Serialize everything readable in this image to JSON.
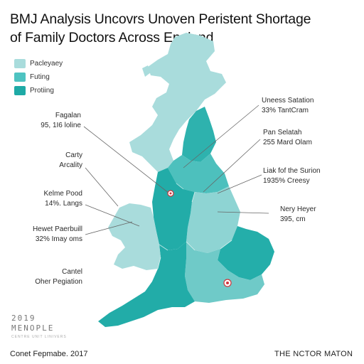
{
  "title": {
    "line1": "BMJ Analysis Uncovrs Unoven Peristent Shortage",
    "line2": "of Family Doctors Across England"
  },
  "legend": [
    {
      "label": "Pacleyaey",
      "color": "#a9dcdc"
    },
    {
      "label": "Futing",
      "color": "#4ec3c1"
    },
    {
      "label": "Protiing",
      "color": "#1eaaa6"
    }
  ],
  "colors": {
    "light": "#a9dcdc",
    "mid": "#57c4c1",
    "dark": "#22aca8",
    "leader": "#555555",
    "marker": "#d0343c"
  },
  "annotations": {
    "fagalan": {
      "line1": "Fagalan",
      "line2": "95, 1I6 loline"
    },
    "carty": {
      "line1": "Carty",
      "line2": "Arcality"
    },
    "kelme": {
      "line1": "Kelme Pood",
      "line2": "14%. Langs"
    },
    "hewet": {
      "line1": "Hewet Paerbuill",
      "line2": "32% Imay oms"
    },
    "cantel": {
      "line1": "Cantel",
      "line2": "Oher Pegiation"
    },
    "uneess": {
      "line1": "Uneess Satation",
      "line2": "33% TantCram"
    },
    "pan": {
      "line1": "Pan Selatah",
      "line2": "255 Mard Olam"
    },
    "liak": {
      "line1": "Liak fof the Surion",
      "line2": "1935% Creesy"
    },
    "nery": {
      "line1": "Nery Heyer",
      "line2": "395, cm"
    }
  },
  "footer": {
    "year": "2019",
    "org": "MENOPLE",
    "small": "CENTRE UNIT LINIVERS",
    "left": "Conet Fepmabe. 2017",
    "right": "THE NCTOR MATON"
  }
}
